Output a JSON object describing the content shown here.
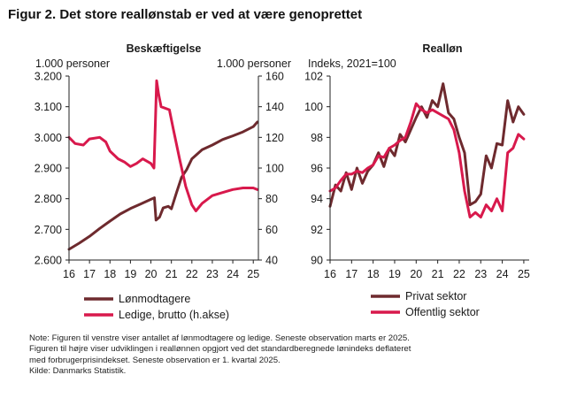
{
  "figure": {
    "title": "Figur 2. Det store reallønstab er ved at være genoprettet",
    "notes": [
      "Note: Figuren til venstre viser antallet af lønmodtagere og ledige. Seneste observation marts er 2025.",
      "Figuren til højre viser udviklingen i reallønnen opgjort ved det standardberegnede lønindeks deflateret",
      "med forbrugerprisindekset. Seneste observation er 1. kvartal 2025.",
      "Kilde: Danmarks Statistik."
    ]
  },
  "colors": {
    "dark_red": "#6e2a2e",
    "red": "#d8194c",
    "axis": "#222222"
  },
  "chart_data": [
    {
      "type": "line",
      "title": "Beskæftigelse",
      "y_left_label": "1.000 personer",
      "y_right_label": "1.000 personer",
      "x_ticks": [
        "16",
        "17",
        "18",
        "19",
        "20",
        "21",
        "22",
        "23",
        "24",
        "25"
      ],
      "xlim": [
        2016,
        2025.25
      ],
      "ylim_left": [
        2600,
        3200
      ],
      "ylim_right": [
        40,
        160
      ],
      "y_left_ticks": [
        "2.600",
        "2.700",
        "2.800",
        "2.900",
        "3.000",
        "3.100",
        "3.200"
      ],
      "y_right_ticks": [
        "40",
        "60",
        "80",
        "100",
        "120",
        "140",
        "160"
      ],
      "legend_position": "bottom",
      "series": [
        {
          "name": "Lønmodtagere",
          "axis": "left",
          "color": "#6e2a2e",
          "points": [
            [
              2016.0,
              2635
            ],
            [
              2016.5,
              2655
            ],
            [
              2017.0,
              2677
            ],
            [
              2017.5,
              2703
            ],
            [
              2018.0,
              2727
            ],
            [
              2018.5,
              2750
            ],
            [
              2019.0,
              2768
            ],
            [
              2019.5,
              2783
            ],
            [
              2020.0,
              2798
            ],
            [
              2020.17,
              2803
            ],
            [
              2020.25,
              2730
            ],
            [
              2020.42,
              2740
            ],
            [
              2020.6,
              2770
            ],
            [
              2020.85,
              2775
            ],
            [
              2021.0,
              2767
            ],
            [
              2021.25,
              2820
            ],
            [
              2021.5,
              2870
            ],
            [
              2021.75,
              2895
            ],
            [
              2022.0,
              2930
            ],
            [
              2022.5,
              2960
            ],
            [
              2023.0,
              2975
            ],
            [
              2023.5,
              2993
            ],
            [
              2024.0,
              3005
            ],
            [
              2024.5,
              3018
            ],
            [
              2025.0,
              3035
            ],
            [
              2025.2,
              3050
            ]
          ]
        },
        {
          "name": "Ledige, brutto (h.akse)",
          "axis": "right",
          "color": "#d8194c",
          "points": [
            [
              2016.0,
              120
            ],
            [
              2016.3,
              116
            ],
            [
              2016.7,
              115
            ],
            [
              2017.0,
              119
            ],
            [
              2017.5,
              120
            ],
            [
              2017.8,
              117
            ],
            [
              2018.0,
              111
            ],
            [
              2018.4,
              106
            ],
            [
              2018.7,
              104
            ],
            [
              2019.0,
              101
            ],
            [
              2019.3,
              103
            ],
            [
              2019.6,
              106
            ],
            [
              2020.0,
              103
            ],
            [
              2020.15,
              100
            ],
            [
              2020.22,
              130
            ],
            [
              2020.28,
              157
            ],
            [
              2020.38,
              148
            ],
            [
              2020.5,
              140
            ],
            [
              2020.9,
              138
            ],
            [
              2021.1,
              125
            ],
            [
              2021.4,
              106
            ],
            [
              2021.7,
              88
            ],
            [
              2022.0,
              76
            ],
            [
              2022.2,
              72
            ],
            [
              2022.5,
              77
            ],
            [
              2022.8,
              80
            ],
            [
              2023.0,
              82
            ],
            [
              2023.5,
              84
            ],
            [
              2024.0,
              86
            ],
            [
              2024.5,
              87
            ],
            [
              2025.0,
              87
            ],
            [
              2025.2,
              86
            ]
          ]
        }
      ]
    },
    {
      "type": "line",
      "title": "Realløn",
      "y_label": "Indeks, 2021=100",
      "x_ticks": [
        "16",
        "17",
        "18",
        "19",
        "20",
        "21",
        "22",
        "23",
        "24",
        "25"
      ],
      "xlim": [
        2016,
        2025.25
      ],
      "ylim": [
        90,
        102
      ],
      "y_ticks": [
        "90",
        "92",
        "94",
        "96",
        "98",
        "100",
        "102"
      ],
      "legend_position": "bottom",
      "series": [
        {
          "name": "Privat sektor",
          "color": "#6e2a2e",
          "points": [
            [
              2016.0,
              93.5
            ],
            [
              2016.25,
              94.9
            ],
            [
              2016.5,
              94.5
            ],
            [
              2016.75,
              95.7
            ],
            [
              2017.0,
              94.6
            ],
            [
              2017.25,
              96.0
            ],
            [
              2017.5,
              95.0
            ],
            [
              2017.75,
              95.8
            ],
            [
              2018.0,
              96.2
            ],
            [
              2018.25,
              97.0
            ],
            [
              2018.5,
              96.1
            ],
            [
              2018.75,
              97.3
            ],
            [
              2019.0,
              96.8
            ],
            [
              2019.25,
              98.2
            ],
            [
              2019.5,
              97.7
            ],
            [
              2019.75,
              98.5
            ],
            [
              2020.0,
              99.3
            ],
            [
              2020.25,
              100.0
            ],
            [
              2020.5,
              99.3
            ],
            [
              2020.75,
              100.4
            ],
            [
              2021.0,
              100.0
            ],
            [
              2021.25,
              101.5
            ],
            [
              2021.5,
              99.6
            ],
            [
              2021.75,
              99.2
            ],
            [
              2022.0,
              98.0
            ],
            [
              2022.25,
              97.0
            ],
            [
              2022.5,
              93.6
            ],
            [
              2022.75,
              93.8
            ],
            [
              2023.0,
              94.3
            ],
            [
              2023.25,
              96.8
            ],
            [
              2023.5,
              96.0
            ],
            [
              2023.75,
              97.6
            ],
            [
              2024.0,
              97.5
            ],
            [
              2024.25,
              100.4
            ],
            [
              2024.5,
              99.0
            ],
            [
              2024.75,
              100.0
            ],
            [
              2025.0,
              99.5
            ]
          ]
        },
        {
          "name": "Offentlig sektor",
          "color": "#d8194c",
          "points": [
            [
              2016.0,
              94.5
            ],
            [
              2016.25,
              94.7
            ],
            [
              2016.5,
              95.2
            ],
            [
              2016.75,
              95.6
            ],
            [
              2017.0,
              95.6
            ],
            [
              2017.25,
              95.8
            ],
            [
              2017.5,
              95.7
            ],
            [
              2017.75,
              96.0
            ],
            [
              2018.0,
              96.2
            ],
            [
              2018.25,
              96.8
            ],
            [
              2018.5,
              96.7
            ],
            [
              2018.75,
              97.3
            ],
            [
              2019.0,
              97.5
            ],
            [
              2019.25,
              97.8
            ],
            [
              2019.5,
              98.0
            ],
            [
              2019.75,
              99.0
            ],
            [
              2020.0,
              100.2
            ],
            [
              2020.25,
              99.8
            ],
            [
              2020.5,
              99.6
            ],
            [
              2020.75,
              99.8
            ],
            [
              2021.0,
              99.6
            ],
            [
              2021.25,
              99.4
            ],
            [
              2021.5,
              99.2
            ],
            [
              2021.75,
              98.5
            ],
            [
              2022.0,
              97.0
            ],
            [
              2022.25,
              94.5
            ],
            [
              2022.5,
              92.8
            ],
            [
              2022.75,
              93.1
            ],
            [
              2023.0,
              92.8
            ],
            [
              2023.25,
              93.6
            ],
            [
              2023.5,
              93.2
            ],
            [
              2023.75,
              94.0
            ],
            [
              2024.0,
              93.2
            ],
            [
              2024.25,
              97.0
            ],
            [
              2024.5,
              97.3
            ],
            [
              2024.75,
              98.2
            ],
            [
              2025.0,
              97.9
            ]
          ]
        }
      ]
    }
  ]
}
